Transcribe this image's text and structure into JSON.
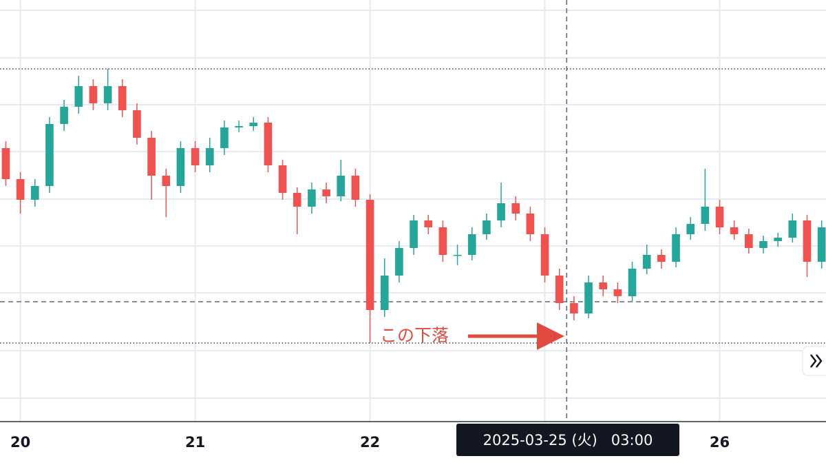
{
  "chart_data": {
    "type": "candlestick",
    "up_color": "#26a69a",
    "down_color": "#ef5350",
    "grid": true,
    "xlim": [
      -2.8,
      110.6
    ],
    "ylim": [
      0,
      610
    ],
    "xticks": [
      {
        "value": 0,
        "label": "20"
      },
      {
        "value": 24,
        "label": "21"
      },
      {
        "value": 48,
        "label": "22"
      },
      {
        "value": 72,
        "label": null
      },
      {
        "value": 96,
        "label": "26"
      }
    ],
    "yticks": [
      32,
      101,
      185,
      253,
      321,
      390,
      458,
      526,
      595
    ],
    "x": [
      -2,
      0,
      2,
      4,
      6,
      8,
      10,
      12,
      14,
      16,
      18,
      20,
      22,
      24,
      26,
      28,
      30,
      32,
      34,
      36,
      38,
      40,
      42,
      44,
      46,
      48,
      50,
      52,
      54,
      56,
      58,
      60,
      62,
      64,
      66,
      68,
      70,
      72,
      74,
      76,
      78,
      80,
      82,
      84,
      86,
      88,
      90,
      92,
      94,
      96,
      98,
      100,
      102,
      104,
      106,
      108,
      110
    ],
    "open": [
      395,
      350,
      320,
      340,
      430,
      455,
      485,
      460,
      485,
      450,
      410,
      355,
      340,
      395,
      370,
      395,
      425,
      427,
      432,
      370,
      330,
      310,
      335,
      325,
      355,
      320,
      160,
      210,
      250,
      290,
      280,
      240,
      240,
      270,
      290,
      315,
      300,
      270,
      210,
      170,
      155,
      200,
      190,
      180,
      220,
      240,
      230,
      270,
      285,
      310,
      280,
      270,
      250,
      260,
      265,
      290,
      230
    ],
    "high": [
      405,
      360,
      350,
      440,
      465,
      500,
      495,
      510,
      495,
      460,
      420,
      365,
      405,
      405,
      410,
      435,
      435,
      440,
      440,
      378,
      338,
      345,
      345,
      378,
      365,
      328,
      235,
      260,
      298,
      298,
      290,
      255,
      280,
      300,
      345,
      325,
      310,
      280,
      220,
      180,
      210,
      210,
      200,
      230,
      255,
      248,
      280,
      295,
      365,
      320,
      290,
      278,
      268,
      272,
      300,
      298,
      290
    ],
    "low": [
      340,
      300,
      310,
      330,
      420,
      445,
      450,
      450,
      440,
      400,
      320,
      295,
      330,
      360,
      360,
      385,
      418,
      420,
      360,
      320,
      270,
      300,
      315,
      318,
      310,
      112,
      150,
      200,
      240,
      270,
      230,
      225,
      232,
      262,
      280,
      290,
      260,
      200,
      160,
      145,
      148,
      180,
      170,
      172,
      212,
      220,
      222,
      262,
      275,
      270,
      262,
      242,
      242,
      252,
      258,
      208,
      220
    ],
    "close": [
      350,
      320,
      340,
      430,
      455,
      485,
      460,
      485,
      450,
      410,
      355,
      340,
      395,
      370,
      395,
      425,
      427,
      432,
      370,
      330,
      310,
      335,
      325,
      355,
      320,
      160,
      210,
      250,
      290,
      280,
      240,
      240,
      270,
      290,
      315,
      300,
      270,
      210,
      170,
      155,
      200,
      190,
      180,
      220,
      240,
      230,
      270,
      285,
      310,
      280,
      270,
      250,
      260,
      265,
      290,
      230,
      280
    ],
    "reference_lines": [
      {
        "value": 510,
        "style": "dotted"
      },
      {
        "value": 172,
        "style": "dashed"
      },
      {
        "value": 112,
        "style": "dotted"
      }
    ],
    "crosshair": {
      "x": 75,
      "label": "2025-03-25 (火)   03:00"
    },
    "annotation": "この下落"
  }
}
